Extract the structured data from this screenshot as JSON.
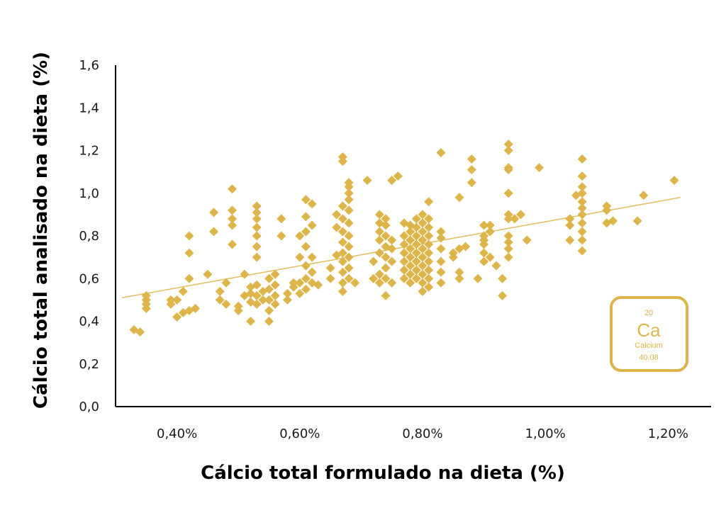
{
  "chart_data": {
    "type": "scatter",
    "xlabel": "Cálcio total formulado na dieta (%)",
    "ylabel": "Cálcio total analisado na dieta (%)",
    "xlim": [
      0.3,
      1.27
    ],
    "ylim": [
      0.0,
      1.6
    ],
    "x_ticks": [
      0.4,
      0.6,
      0.8,
      1.0,
      1.2
    ],
    "x_tick_labels": [
      "0,40%",
      "0,60%",
      "0,80%",
      "1,00%",
      "1,20%"
    ],
    "y_ticks": [
      0.0,
      0.2,
      0.4,
      0.6,
      0.8,
      1.0,
      1.2,
      1.4,
      1.6
    ],
    "y_tick_labels": [
      "0,0",
      "0,2",
      "0,4",
      "0,6",
      "0,8",
      "1,0",
      "1,2",
      "1,4",
      "1,6"
    ],
    "grid": false,
    "legend": "none",
    "marker": "diamond",
    "color": "#DDB54A",
    "trendline": {
      "type": "linear",
      "points": [
        [
          0.31,
          0.51
        ],
        [
          1.22,
          0.98
        ]
      ]
    },
    "series": [
      {
        "points": [
          [
            0.33,
            0.36
          ],
          [
            0.34,
            0.35
          ],
          [
            0.35,
            0.46
          ],
          [
            0.35,
            0.48
          ],
          [
            0.35,
            0.5
          ],
          [
            0.35,
            0.52
          ],
          [
            0.39,
            0.48
          ],
          [
            0.39,
            0.5
          ],
          [
            0.4,
            0.42
          ],
          [
            0.4,
            0.5
          ],
          [
            0.41,
            0.44
          ],
          [
            0.41,
            0.54
          ],
          [
            0.42,
            0.6
          ],
          [
            0.42,
            0.72
          ],
          [
            0.42,
            0.8
          ],
          [
            0.42,
            0.45
          ],
          [
            0.43,
            0.46
          ],
          [
            0.45,
            0.62
          ],
          [
            0.46,
            0.82
          ],
          [
            0.46,
            0.91
          ],
          [
            0.47,
            0.54
          ],
          [
            0.47,
            0.5
          ],
          [
            0.48,
            0.48
          ],
          [
            0.48,
            0.58
          ],
          [
            0.49,
            0.76
          ],
          [
            0.49,
            0.85
          ],
          [
            0.49,
            0.88
          ],
          [
            0.49,
            0.92
          ],
          [
            0.49,
            1.02
          ],
          [
            0.5,
            0.47
          ],
          [
            0.5,
            0.45
          ],
          [
            0.51,
            0.52
          ],
          [
            0.51,
            0.62
          ],
          [
            0.52,
            0.49
          ],
          [
            0.52,
            0.4
          ],
          [
            0.52,
            0.53
          ],
          [
            0.52,
            0.56
          ],
          [
            0.53,
            0.48
          ],
          [
            0.53,
            0.52
          ],
          [
            0.53,
            0.57
          ],
          [
            0.53,
            0.7
          ],
          [
            0.53,
            0.75
          ],
          [
            0.53,
            0.8
          ],
          [
            0.53,
            0.84
          ],
          [
            0.53,
            0.88
          ],
          [
            0.53,
            0.91
          ],
          [
            0.53,
            0.94
          ],
          [
            0.54,
            0.5
          ],
          [
            0.54,
            0.54
          ],
          [
            0.55,
            0.4
          ],
          [
            0.55,
            0.45
          ],
          [
            0.55,
            0.5
          ],
          [
            0.55,
            0.55
          ],
          [
            0.55,
            0.6
          ],
          [
            0.56,
            0.48
          ],
          [
            0.56,
            0.52
          ],
          [
            0.56,
            0.57
          ],
          [
            0.56,
            0.62
          ],
          [
            0.57,
            0.8
          ],
          [
            0.57,
            0.88
          ],
          [
            0.58,
            0.5
          ],
          [
            0.58,
            0.53
          ],
          [
            0.59,
            0.56
          ],
          [
            0.59,
            0.58
          ],
          [
            0.6,
            0.53
          ],
          [
            0.6,
            0.58
          ],
          [
            0.6,
            0.7
          ],
          [
            0.6,
            0.8
          ],
          [
            0.61,
            0.55
          ],
          [
            0.61,
            0.6
          ],
          [
            0.61,
            0.66
          ],
          [
            0.61,
            0.75
          ],
          [
            0.61,
            0.82
          ],
          [
            0.61,
            0.89
          ],
          [
            0.61,
            0.97
          ],
          [
            0.62,
            0.58
          ],
          [
            0.62,
            0.63
          ],
          [
            0.62,
            0.7
          ],
          [
            0.62,
            0.85
          ],
          [
            0.62,
            0.95
          ],
          [
            0.63,
            0.57
          ],
          [
            0.65,
            0.6
          ],
          [
            0.65,
            0.65
          ],
          [
            0.66,
            0.71
          ],
          [
            0.66,
            0.84
          ],
          [
            0.66,
            0.9
          ],
          [
            0.67,
            0.54
          ],
          [
            0.67,
            0.58
          ],
          [
            0.67,
            0.63
          ],
          [
            0.67,
            0.68
          ],
          [
            0.67,
            0.72
          ],
          [
            0.67,
            0.77
          ],
          [
            0.67,
            0.82
          ],
          [
            0.67,
            0.88
          ],
          [
            0.67,
            0.94
          ],
          [
            0.67,
            1.15
          ],
          [
            0.67,
            1.17
          ],
          [
            0.68,
            0.6
          ],
          [
            0.68,
            0.65
          ],
          [
            0.68,
            0.7
          ],
          [
            0.68,
            0.75
          ],
          [
            0.68,
            0.8
          ],
          [
            0.68,
            0.86
          ],
          [
            0.68,
            0.92
          ],
          [
            0.68,
            0.97
          ],
          [
            0.68,
            1.0
          ],
          [
            0.68,
            1.03
          ],
          [
            0.68,
            1.05
          ],
          [
            0.69,
            0.58
          ],
          [
            0.71,
            1.06
          ],
          [
            0.72,
            0.68
          ],
          [
            0.72,
            0.6
          ],
          [
            0.73,
            0.58
          ],
          [
            0.73,
            0.62
          ],
          [
            0.73,
            0.72
          ],
          [
            0.73,
            0.78
          ],
          [
            0.73,
            0.82
          ],
          [
            0.73,
            0.86
          ],
          [
            0.73,
            0.9
          ],
          [
            0.74,
            0.52
          ],
          [
            0.74,
            0.6
          ],
          [
            0.74,
            0.65
          ],
          [
            0.74,
            0.7
          ],
          [
            0.74,
            0.75
          ],
          [
            0.74,
            0.8
          ],
          [
            0.74,
            0.85
          ],
          [
            0.74,
            0.88
          ],
          [
            0.75,
            0.58
          ],
          [
            0.75,
            0.68
          ],
          [
            0.75,
            0.74
          ],
          [
            0.75,
            0.78
          ],
          [
            0.75,
            1.06
          ],
          [
            0.76,
            1.08
          ],
          [
            0.77,
            0.6
          ],
          [
            0.77,
            0.64
          ],
          [
            0.77,
            0.68
          ],
          [
            0.77,
            0.72
          ],
          [
            0.77,
            0.76
          ],
          [
            0.77,
            0.8
          ],
          [
            0.77,
            0.86
          ],
          [
            0.78,
            0.58
          ],
          [
            0.78,
            0.62
          ],
          [
            0.78,
            0.66
          ],
          [
            0.78,
            0.7
          ],
          [
            0.78,
            0.74
          ],
          [
            0.78,
            0.78
          ],
          [
            0.78,
            0.82
          ],
          [
            0.78,
            0.85
          ],
          [
            0.79,
            0.6
          ],
          [
            0.79,
            0.64
          ],
          [
            0.79,
            0.68
          ],
          [
            0.79,
            0.72
          ],
          [
            0.79,
            0.76
          ],
          [
            0.79,
            0.8
          ],
          [
            0.79,
            0.84
          ],
          [
            0.79,
            0.88
          ],
          [
            0.8,
            0.54
          ],
          [
            0.8,
            0.58
          ],
          [
            0.8,
            0.62
          ],
          [
            0.8,
            0.66
          ],
          [
            0.8,
            0.7
          ],
          [
            0.8,
            0.74
          ],
          [
            0.8,
            0.78
          ],
          [
            0.8,
            0.82
          ],
          [
            0.8,
            0.86
          ],
          [
            0.8,
            0.9
          ],
          [
            0.81,
            0.56
          ],
          [
            0.81,
            0.6
          ],
          [
            0.81,
            0.64
          ],
          [
            0.81,
            0.68
          ],
          [
            0.81,
            0.72
          ],
          [
            0.81,
            0.76
          ],
          [
            0.81,
            0.8
          ],
          [
            0.81,
            0.84
          ],
          [
            0.81,
            0.88
          ],
          [
            0.81,
            0.96
          ],
          [
            0.83,
            0.58
          ],
          [
            0.83,
            0.63
          ],
          [
            0.83,
            0.68
          ],
          [
            0.83,
            0.74
          ],
          [
            0.83,
            0.79
          ],
          [
            0.83,
            0.82
          ],
          [
            0.83,
            1.19
          ],
          [
            0.85,
            0.7
          ],
          [
            0.85,
            0.72
          ],
          [
            0.86,
            0.98
          ],
          [
            0.86,
            0.6
          ],
          [
            0.86,
            0.63
          ],
          [
            0.86,
            0.74
          ],
          [
            0.87,
            0.75
          ],
          [
            0.88,
            1.05
          ],
          [
            0.88,
            1.11
          ],
          [
            0.88,
            1.16
          ],
          [
            0.89,
            0.6
          ],
          [
            0.9,
            0.68
          ],
          [
            0.9,
            0.72
          ],
          [
            0.9,
            0.76
          ],
          [
            0.9,
            0.78
          ],
          [
            0.9,
            0.8
          ],
          [
            0.9,
            0.85
          ],
          [
            0.91,
            0.7
          ],
          [
            0.91,
            0.82
          ],
          [
            0.91,
            0.85
          ],
          [
            0.92,
            0.66
          ],
          [
            0.93,
            0.52
          ],
          [
            0.93,
            0.6
          ],
          [
            0.94,
            0.7
          ],
          [
            0.94,
            0.74
          ],
          [
            0.94,
            0.77
          ],
          [
            0.94,
            0.8
          ],
          [
            0.94,
            0.88
          ],
          [
            0.94,
            0.9
          ],
          [
            0.94,
            1.0
          ],
          [
            0.94,
            1.11
          ],
          [
            0.94,
            1.12
          ],
          [
            0.94,
            1.2
          ],
          [
            0.94,
            1.23
          ],
          [
            0.95,
            0.88
          ],
          [
            0.96,
            0.9
          ],
          [
            0.97,
            0.78
          ],
          [
            0.99,
            1.12
          ],
          [
            1.04,
            0.78
          ],
          [
            1.04,
            0.85
          ],
          [
            1.04,
            0.88
          ],
          [
            1.05,
            0.99
          ],
          [
            1.06,
            0.73
          ],
          [
            1.06,
            0.78
          ],
          [
            1.06,
            0.82
          ],
          [
            1.06,
            0.86
          ],
          [
            1.06,
            0.9
          ],
          [
            1.06,
            0.93
          ],
          [
            1.06,
            0.96
          ],
          [
            1.06,
            1.0
          ],
          [
            1.06,
            1.03
          ],
          [
            1.06,
            1.08
          ],
          [
            1.06,
            1.16
          ],
          [
            1.1,
            0.86
          ],
          [
            1.1,
            0.92
          ],
          [
            1.1,
            0.94
          ],
          [
            1.11,
            0.87
          ],
          [
            1.15,
            0.87
          ],
          [
            1.16,
            0.99
          ],
          [
            1.21,
            1.06
          ]
        ]
      }
    ]
  },
  "element_badge": {
    "number": "20",
    "symbol": "Ca",
    "name": "Calcium",
    "mass": "40.08",
    "color": "#DDB54A"
  }
}
